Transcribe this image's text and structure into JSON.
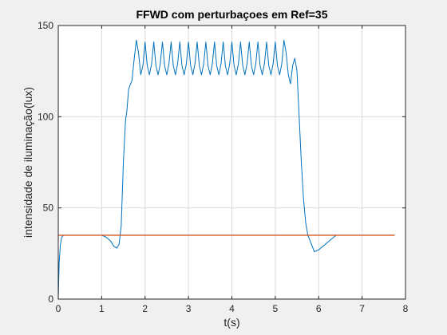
{
  "chart_data": {
    "type": "line",
    "title": "FFWD com perturbaçoes em Ref=35",
    "xlabel": "t(s)",
    "ylabel": "intensidade de iluminação(lux)",
    "xlim": [
      0,
      8
    ],
    "ylim": [
      0,
      150
    ],
    "xticks": [
      0,
      1,
      2,
      3,
      4,
      5,
      6,
      7,
      8
    ],
    "yticks": [
      0,
      50,
      100,
      150
    ],
    "xtick_labels": [
      "0",
      "1",
      "2",
      "3",
      "4",
      "5",
      "6",
      "7",
      "8"
    ],
    "ytick_labels": [
      "0",
      "50",
      "100",
      "150"
    ],
    "grid": true,
    "legend": "none",
    "series": [
      {
        "color": "#0072bd",
        "x": [
          0,
          0.02,
          0.05,
          0.08,
          0.12,
          0.18,
          0.25,
          0.4,
          0.6,
          0.8,
          1.0,
          1.1,
          1.2,
          1.28,
          1.35,
          1.4,
          1.45,
          1.5,
          1.55,
          1.58,
          1.62,
          1.65,
          1.7,
          1.75,
          1.8,
          1.85,
          1.9,
          1.95,
          2.0,
          2.05,
          2.1,
          2.15,
          2.2,
          2.25,
          2.3,
          2.35,
          2.4,
          2.45,
          2.5,
          2.55,
          2.6,
          2.65,
          2.7,
          2.75,
          2.8,
          2.85,
          2.9,
          2.95,
          3.0,
          3.05,
          3.1,
          3.15,
          3.2,
          3.25,
          3.3,
          3.35,
          3.4,
          3.45,
          3.5,
          3.55,
          3.6,
          3.65,
          3.7,
          3.75,
          3.8,
          3.85,
          3.9,
          3.95,
          4.0,
          4.05,
          4.1,
          4.15,
          4.2,
          4.25,
          4.3,
          4.35,
          4.4,
          4.45,
          4.5,
          4.55,
          4.6,
          4.65,
          4.7,
          4.75,
          4.8,
          4.85,
          4.9,
          4.95,
          5.0,
          5.05,
          5.1,
          5.15,
          5.2,
          5.25,
          5.3,
          5.35,
          5.4,
          5.45,
          5.5,
          5.55,
          5.6,
          5.65,
          5.7,
          5.75,
          5.8,
          5.85,
          5.9,
          6.0,
          6.1,
          6.2,
          6.3,
          6.4,
          6.5,
          6.7,
          7.0,
          7.3,
          7.5,
          7.75
        ],
        "y": [
          0,
          20,
          30,
          34,
          35,
          35,
          35,
          35,
          35,
          35,
          35,
          34,
          32,
          29,
          28,
          30,
          40,
          75,
          98,
          103,
          115,
          117,
          120,
          132,
          142,
          135,
          123,
          128,
          141,
          128,
          123,
          129,
          141,
          128,
          123,
          129,
          141,
          128,
          123,
          129,
          141,
          128,
          123,
          129,
          141,
          128,
          123,
          129,
          141,
          128,
          123,
          129,
          141,
          128,
          123,
          129,
          141,
          128,
          123,
          129,
          141,
          128,
          123,
          129,
          141,
          128,
          123,
          129,
          141,
          128,
          123,
          129,
          141,
          128,
          123,
          129,
          141,
          128,
          123,
          129,
          141,
          128,
          123,
          129,
          141,
          128,
          123,
          129,
          141,
          128,
          123,
          129,
          142,
          135,
          123,
          118,
          128,
          132,
          125,
          100,
          75,
          55,
          42,
          35,
          32,
          29,
          26,
          27,
          29,
          31,
          33,
          35,
          35,
          35,
          35,
          35,
          35,
          35
        ]
      },
      {
        "color": "#d95319",
        "x": [
          0,
          7.75
        ],
        "y": [
          35,
          35
        ]
      }
    ]
  }
}
